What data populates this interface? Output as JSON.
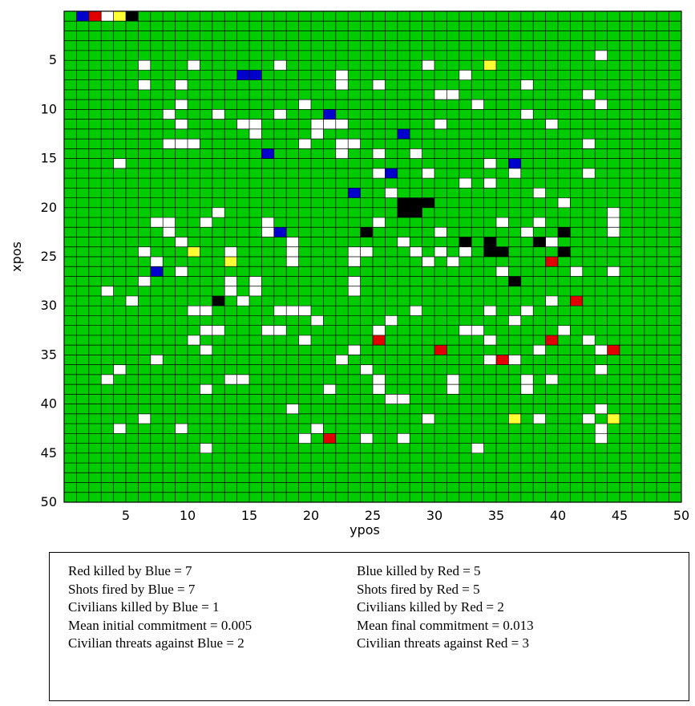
{
  "chart_data": {
    "type": "heatmap",
    "xlabel": "ypos",
    "ylabel": "xpos",
    "xlim": [
      1,
      50
    ],
    "ylim": [
      1,
      50
    ],
    "y_axis_reversed": true,
    "x_ticks": [
      "5",
      "10",
      "15",
      "20",
      "25",
      "30",
      "35",
      "40",
      "45",
      "50"
    ],
    "y_ticks": [
      "5",
      "10",
      "15",
      "20",
      "25",
      "30",
      "35",
      "40",
      "45",
      "50"
    ],
    "grid": true,
    "colors": {
      "empty": "#00cc00",
      "civilian": "#ffffff",
      "blue": "#0000cc",
      "red": "#e00000",
      "yellow": "#ffff33",
      "dead": "#000000",
      "gridline": "#000000"
    },
    "cells": {
      "blue": [
        [
          1,
          2
        ],
        [
          7,
          15
        ],
        [
          7,
          16
        ],
        [
          11,
          22
        ],
        [
          13,
          28
        ],
        [
          15,
          17
        ],
        [
          16,
          37
        ],
        [
          17,
          27
        ],
        [
          19,
          24
        ],
        [
          23,
          18
        ],
        [
          27,
          8
        ]
      ],
      "red": [
        [
          1,
          3
        ],
        [
          26,
          40
        ],
        [
          30,
          42
        ],
        [
          34,
          26
        ],
        [
          34,
          40
        ],
        [
          35,
          31
        ],
        [
          35,
          45
        ],
        [
          36,
          36
        ],
        [
          44,
          22
        ]
      ],
      "yellow": [
        [
          1,
          5
        ],
        [
          6,
          35
        ],
        [
          25,
          11
        ],
        [
          26,
          14
        ],
        [
          42,
          37
        ],
        [
          42,
          45
        ]
      ],
      "dead": [
        [
          1,
          6
        ],
        [
          20,
          28
        ],
        [
          21,
          28
        ],
        [
          20,
          29
        ],
        [
          20,
          30
        ],
        [
          21,
          29
        ],
        [
          23,
          25
        ],
        [
          24,
          33
        ],
        [
          24,
          35
        ],
        [
          24,
          39
        ],
        [
          23,
          41
        ],
        [
          25,
          35
        ],
        [
          25,
          36
        ],
        [
          25,
          41
        ],
        [
          28,
          37
        ],
        [
          30,
          13
        ]
      ],
      "civilian": [
        [
          1,
          4
        ],
        [
          5,
          44
        ],
        [
          6,
          7
        ],
        [
          6,
          11
        ],
        [
          6,
          18
        ],
        [
          6,
          30
        ],
        [
          7,
          23
        ],
        [
          7,
          33
        ],
        [
          8,
          7
        ],
        [
          8,
          10
        ],
        [
          8,
          23
        ],
        [
          8,
          26
        ],
        [
          8,
          38
        ],
        [
          9,
          31
        ],
        [
          9,
          32
        ],
        [
          9,
          43
        ],
        [
          10,
          10
        ],
        [
          10,
          20
        ],
        [
          10,
          34
        ],
        [
          10,
          44
        ],
        [
          11,
          9
        ],
        [
          11,
          13
        ],
        [
          11,
          18
        ],
        [
          11,
          38
        ],
        [
          12,
          10
        ],
        [
          12,
          15
        ],
        [
          12,
          16
        ],
        [
          12,
          21
        ],
        [
          12,
          22
        ],
        [
          12,
          23
        ],
        [
          12,
          31
        ],
        [
          12,
          40
        ],
        [
          13,
          16
        ],
        [
          13,
          21
        ],
        [
          14,
          9
        ],
        [
          14,
          10
        ],
        [
          14,
          11
        ],
        [
          14,
          20
        ],
        [
          14,
          23
        ],
        [
          14,
          24
        ],
        [
          14,
          43
        ],
        [
          15,
          23
        ],
        [
          15,
          26
        ],
        [
          15,
          29
        ],
        [
          16,
          5
        ],
        [
          16,
          35
        ],
        [
          17,
          26
        ],
        [
          17,
          30
        ],
        [
          17,
          37
        ],
        [
          17,
          43
        ],
        [
          18,
          33
        ],
        [
          18,
          35
        ],
        [
          19,
          27
        ],
        [
          19,
          39
        ],
        [
          20,
          41
        ],
        [
          21,
          13
        ],
        [
          21,
          45
        ],
        [
          22,
          8
        ],
        [
          22,
          9
        ],
        [
          22,
          12
        ],
        [
          22,
          17
        ],
        [
          22,
          26
        ],
        [
          22,
          36
        ],
        [
          22,
          39
        ],
        [
          22,
          45
        ],
        [
          23,
          9
        ],
        [
          23,
          17
        ],
        [
          23,
          31
        ],
        [
          23,
          38
        ],
        [
          23,
          45
        ],
        [
          24,
          10
        ],
        [
          24,
          19
        ],
        [
          24,
          28
        ],
        [
          24,
          40
        ],
        [
          25,
          7
        ],
        [
          25,
          14
        ],
        [
          25,
          19
        ],
        [
          25,
          24
        ],
        [
          25,
          25
        ],
        [
          25,
          29
        ],
        [
          25,
          31
        ],
        [
          25,
          33
        ],
        [
          26,
          8
        ],
        [
          26,
          19
        ],
        [
          26,
          24
        ],
        [
          26,
          30
        ],
        [
          26,
          32
        ],
        [
          27,
          10
        ],
        [
          27,
          36
        ],
        [
          27,
          42
        ],
        [
          27,
          45
        ],
        [
          28,
          7
        ],
        [
          28,
          14
        ],
        [
          28,
          16
        ],
        [
          28,
          24
        ],
        [
          29,
          4
        ],
        [
          29,
          14
        ],
        [
          29,
          16
        ],
        [
          29,
          24
        ],
        [
          30,
          6
        ],
        [
          30,
          15
        ],
        [
          30,
          40
        ],
        [
          31,
          11
        ],
        [
          31,
          12
        ],
        [
          31,
          18
        ],
        [
          31,
          19
        ],
        [
          31,
          20
        ],
        [
          31,
          29
        ],
        [
          31,
          35
        ],
        [
          31,
          38
        ],
        [
          32,
          21
        ],
        [
          32,
          27
        ],
        [
          32,
          37
        ],
        [
          33,
          12
        ],
        [
          33,
          13
        ],
        [
          33,
          17
        ],
        [
          33,
          18
        ],
        [
          33,
          26
        ],
        [
          33,
          33
        ],
        [
          33,
          34
        ],
        [
          33,
          41
        ],
        [
          34,
          11
        ],
        [
          34,
          20
        ],
        [
          34,
          35
        ],
        [
          34,
          43
        ],
        [
          35,
          12
        ],
        [
          35,
          24
        ],
        [
          35,
          39
        ],
        [
          35,
          44
        ],
        [
          36,
          8
        ],
        [
          36,
          23
        ],
        [
          36,
          35
        ],
        [
          36,
          37
        ],
        [
          37,
          5
        ],
        [
          37,
          25
        ],
        [
          37,
          44
        ],
        [
          38,
          4
        ],
        [
          38,
          14
        ],
        [
          38,
          15
        ],
        [
          38,
          26
        ],
        [
          38,
          32
        ],
        [
          38,
          38
        ],
        [
          38,
          40
        ],
        [
          39,
          12
        ],
        [
          39,
          22
        ],
        [
          39,
          26
        ],
        [
          39,
          32
        ],
        [
          39,
          38
        ],
        [
          40,
          27
        ],
        [
          40,
          28
        ],
        [
          41,
          19
        ],
        [
          41,
          44
        ],
        [
          42,
          7
        ],
        [
          42,
          30
        ],
        [
          42,
          39
        ],
        [
          42,
          43
        ],
        [
          43,
          5
        ],
        [
          43,
          10
        ],
        [
          43,
          21
        ],
        [
          43,
          44
        ],
        [
          44,
          20
        ],
        [
          44,
          25
        ],
        [
          44,
          28
        ],
        [
          44,
          44
        ],
        [
          45,
          12
        ],
        [
          45,
          34
        ]
      ]
    }
  },
  "stats": {
    "left": [
      "Red killed by Blue = 7",
      "Shots fired by Blue = 7",
      "Civilians killed by Blue = 1",
      "Mean initial commitment = 0.005",
      "Civilian threats against Blue = 2"
    ],
    "right": [
      "Blue killed by Red = 5",
      "Shots fired by Red = 5",
      "Civilians killed by Red = 2",
      "Mean final commitment = 0.013",
      "Civilian threats against Red = 3"
    ]
  }
}
